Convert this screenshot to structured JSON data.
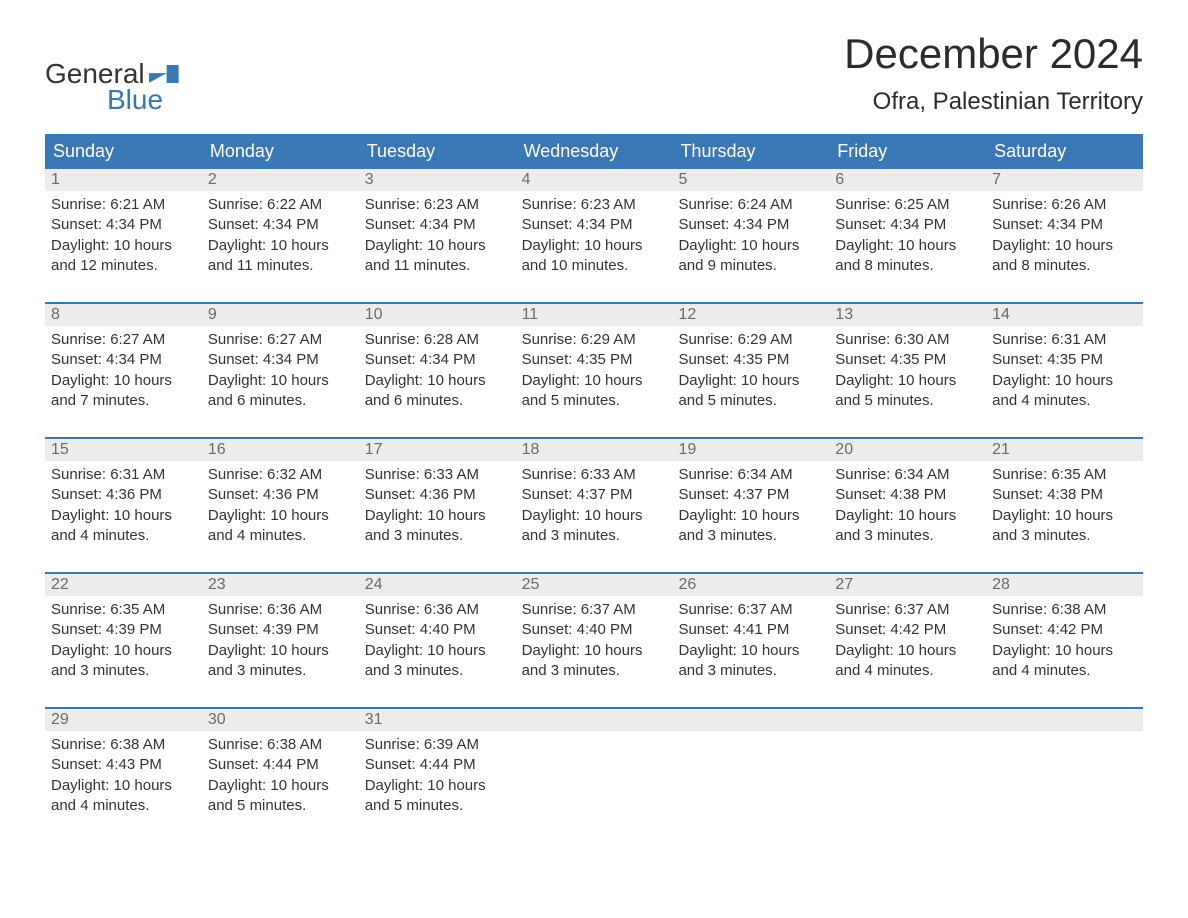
{
  "brand": {
    "line1": "General",
    "line2": "Blue"
  },
  "title": "December 2024",
  "location": "Ofra, Palestinian Territory",
  "colors": {
    "header_bg": "#3a78b5",
    "header_text": "#ffffff",
    "daynum_bg": "#ececec",
    "daynum_text": "#6a6a6a",
    "body_text": "#333333",
    "page_bg": "#ffffff",
    "week_border": "#3a78b5"
  },
  "typography": {
    "title_fontsize": 42,
    "location_fontsize": 24,
    "header_fontsize": 18,
    "body_fontsize": 15
  },
  "layout": {
    "columns": 7,
    "rows": 5
  },
  "day_headers": [
    "Sunday",
    "Monday",
    "Tuesday",
    "Wednesday",
    "Thursday",
    "Friday",
    "Saturday"
  ],
  "labels": {
    "sunrise": "Sunrise:",
    "sunset": "Sunset:",
    "daylight": "Daylight:"
  },
  "weeks": [
    [
      {
        "n": "1",
        "sr": "6:21 AM",
        "ss": "4:34 PM",
        "dl": "10 hours and 12 minutes."
      },
      {
        "n": "2",
        "sr": "6:22 AM",
        "ss": "4:34 PM",
        "dl": "10 hours and 11 minutes."
      },
      {
        "n": "3",
        "sr": "6:23 AM",
        "ss": "4:34 PM",
        "dl": "10 hours and 11 minutes."
      },
      {
        "n": "4",
        "sr": "6:23 AM",
        "ss": "4:34 PM",
        "dl": "10 hours and 10 minutes."
      },
      {
        "n": "5",
        "sr": "6:24 AM",
        "ss": "4:34 PM",
        "dl": "10 hours and 9 minutes."
      },
      {
        "n": "6",
        "sr": "6:25 AM",
        "ss": "4:34 PM",
        "dl": "10 hours and 8 minutes."
      },
      {
        "n": "7",
        "sr": "6:26 AM",
        "ss": "4:34 PM",
        "dl": "10 hours and 8 minutes."
      }
    ],
    [
      {
        "n": "8",
        "sr": "6:27 AM",
        "ss": "4:34 PM",
        "dl": "10 hours and 7 minutes."
      },
      {
        "n": "9",
        "sr": "6:27 AM",
        "ss": "4:34 PM",
        "dl": "10 hours and 6 minutes."
      },
      {
        "n": "10",
        "sr": "6:28 AM",
        "ss": "4:34 PM",
        "dl": "10 hours and 6 minutes."
      },
      {
        "n": "11",
        "sr": "6:29 AM",
        "ss": "4:35 PM",
        "dl": "10 hours and 5 minutes."
      },
      {
        "n": "12",
        "sr": "6:29 AM",
        "ss": "4:35 PM",
        "dl": "10 hours and 5 minutes."
      },
      {
        "n": "13",
        "sr": "6:30 AM",
        "ss": "4:35 PM",
        "dl": "10 hours and 5 minutes."
      },
      {
        "n": "14",
        "sr": "6:31 AM",
        "ss": "4:35 PM",
        "dl": "10 hours and 4 minutes."
      }
    ],
    [
      {
        "n": "15",
        "sr": "6:31 AM",
        "ss": "4:36 PM",
        "dl": "10 hours and 4 minutes."
      },
      {
        "n": "16",
        "sr": "6:32 AM",
        "ss": "4:36 PM",
        "dl": "10 hours and 4 minutes."
      },
      {
        "n": "17",
        "sr": "6:33 AM",
        "ss": "4:36 PM",
        "dl": "10 hours and 3 minutes."
      },
      {
        "n": "18",
        "sr": "6:33 AM",
        "ss": "4:37 PM",
        "dl": "10 hours and 3 minutes."
      },
      {
        "n": "19",
        "sr": "6:34 AM",
        "ss": "4:37 PM",
        "dl": "10 hours and 3 minutes."
      },
      {
        "n": "20",
        "sr": "6:34 AM",
        "ss": "4:38 PM",
        "dl": "10 hours and 3 minutes."
      },
      {
        "n": "21",
        "sr": "6:35 AM",
        "ss": "4:38 PM",
        "dl": "10 hours and 3 minutes."
      }
    ],
    [
      {
        "n": "22",
        "sr": "6:35 AM",
        "ss": "4:39 PM",
        "dl": "10 hours and 3 minutes."
      },
      {
        "n": "23",
        "sr": "6:36 AM",
        "ss": "4:39 PM",
        "dl": "10 hours and 3 minutes."
      },
      {
        "n": "24",
        "sr": "6:36 AM",
        "ss": "4:40 PM",
        "dl": "10 hours and 3 minutes."
      },
      {
        "n": "25",
        "sr": "6:37 AM",
        "ss": "4:40 PM",
        "dl": "10 hours and 3 minutes."
      },
      {
        "n": "26",
        "sr": "6:37 AM",
        "ss": "4:41 PM",
        "dl": "10 hours and 3 minutes."
      },
      {
        "n": "27",
        "sr": "6:37 AM",
        "ss": "4:42 PM",
        "dl": "10 hours and 4 minutes."
      },
      {
        "n": "28",
        "sr": "6:38 AM",
        "ss": "4:42 PM",
        "dl": "10 hours and 4 minutes."
      }
    ],
    [
      {
        "n": "29",
        "sr": "6:38 AM",
        "ss": "4:43 PM",
        "dl": "10 hours and 4 minutes."
      },
      {
        "n": "30",
        "sr": "6:38 AM",
        "ss": "4:44 PM",
        "dl": "10 hours and 5 minutes."
      },
      {
        "n": "31",
        "sr": "6:39 AM",
        "ss": "4:44 PM",
        "dl": "10 hours and 5 minutes."
      },
      null,
      null,
      null,
      null
    ]
  ]
}
